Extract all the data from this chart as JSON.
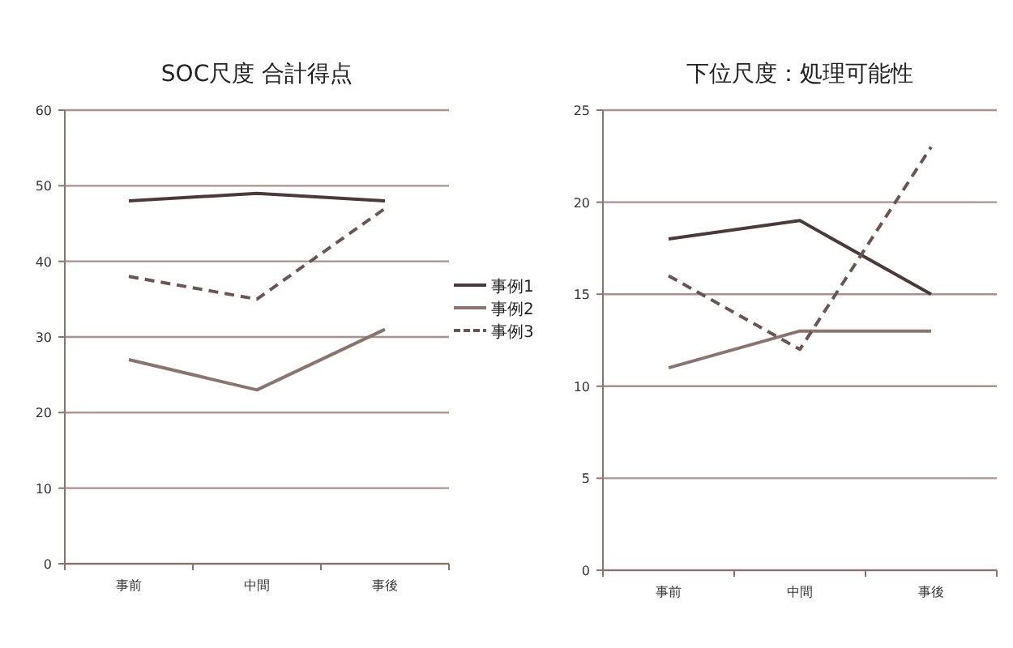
{
  "chart_data": [
    {
      "type": "line",
      "title": "SOC尺度 合計得点",
      "categories": [
        "事前",
        "中間",
        "事後"
      ],
      "ylim": [
        0,
        60
      ],
      "yticks": [
        0,
        10,
        20,
        30,
        40,
        50,
        60
      ],
      "grid": "y",
      "legend": "right",
      "marker": "none",
      "series": [
        {
          "name": "事例1",
          "color": "#4a3a3a",
          "values": [
            48,
            49,
            48
          ],
          "line_style": "solid"
        },
        {
          "name": "事例2",
          "color": "#8a7470",
          "values": [
            27,
            23,
            31
          ],
          "line_style": "solid"
        },
        {
          "name": "事例3",
          "color": "#6a5555",
          "values": [
            38,
            35,
            47
          ],
          "line_style": "dashed"
        }
      ]
    },
    {
      "type": "line",
      "title": "下位尺度：処理可能性",
      "categories": [
        "事前",
        "中間",
        "事後"
      ],
      "ylim": [
        0,
        25
      ],
      "yticks": [
        0,
        5,
        10,
        15,
        20,
        25
      ],
      "grid": "y",
      "legend": false,
      "marker": "none",
      "series": [
        {
          "color": "#4a3a3a",
          "values": [
            18,
            19,
            15
          ],
          "line_style": "solid"
        },
        {
          "color": "#8a7470",
          "values": [
            11,
            13,
            13
          ],
          "line_style": "solid"
        },
        {
          "color": "#6a5555",
          "values": [
            16,
            12,
            23
          ],
          "line_style": "dashed"
        }
      ]
    }
  ]
}
